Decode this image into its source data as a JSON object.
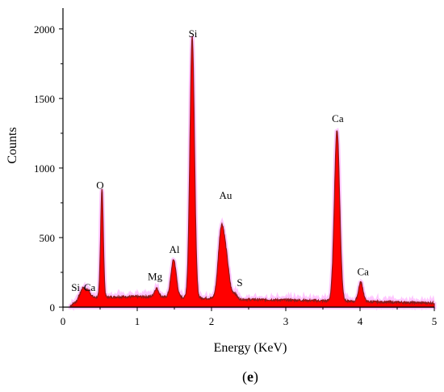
{
  "chart_data": {
    "type": "area",
    "xlabel": "Energy (KeV)",
    "ylabel": "Counts",
    "panel_label": "(e)",
    "panel_letter": "e",
    "xlim": [
      0,
      5
    ],
    "ylim": [
      0,
      2150
    ],
    "xticks": [
      0,
      1,
      2,
      3,
      4,
      5
    ],
    "yticks": [
      0,
      500,
      1000,
      1500,
      2000
    ],
    "grid": false,
    "fill_color": "#ff0000",
    "outline_color": "#8b1a1a",
    "halo_color": "#ff99ff",
    "baseline": 50,
    "peaks": [
      {
        "element": "Si",
        "x": 0.27,
        "height": 70,
        "width": 0.03
      },
      {
        "element": "Ca",
        "x": 0.34,
        "height": 50,
        "width": 0.03
      },
      {
        "element": "O",
        "x": 0.525,
        "height": 780,
        "width": 0.018
      },
      {
        "element": "Mg",
        "x": 1.26,
        "height": 60,
        "width": 0.03
      },
      {
        "element": "Al",
        "x": 1.49,
        "height": 270,
        "width": 0.035
      },
      {
        "element": "Si",
        "x": 1.74,
        "height": 1880,
        "width": 0.03
      },
      {
        "element": "Au",
        "x": 2.13,
        "height": 470,
        "width": 0.04
      },
      {
        "element": "Au",
        "x": 2.2,
        "height": 250,
        "width": 0.04
      },
      {
        "element": "S",
        "x": 2.31,
        "height": 40,
        "width": 0.03
      },
      {
        "element": "Ca",
        "x": 3.69,
        "height": 1230,
        "width": 0.035
      },
      {
        "element": "Ca",
        "x": 4.01,
        "height": 140,
        "width": 0.03
      }
    ],
    "annotations": [
      {
        "text": "Si",
        "x": 0.17,
        "y": 115
      },
      {
        "text": "Ca",
        "x": 0.36,
        "y": 115
      },
      {
        "text": "O",
        "x": 0.5,
        "y": 850
      },
      {
        "text": "Mg",
        "x": 1.24,
        "y": 195
      },
      {
        "text": "Al",
        "x": 1.5,
        "y": 390
      },
      {
        "text": "Si",
        "x": 1.75,
        "y": 1940
      },
      {
        "text": "Au",
        "x": 2.19,
        "y": 780
      },
      {
        "text": "S",
        "x": 2.38,
        "y": 150
      },
      {
        "text": "Ca",
        "x": 3.7,
        "y": 1330
      },
      {
        "text": "Ca",
        "x": 4.04,
        "y": 230
      }
    ]
  }
}
